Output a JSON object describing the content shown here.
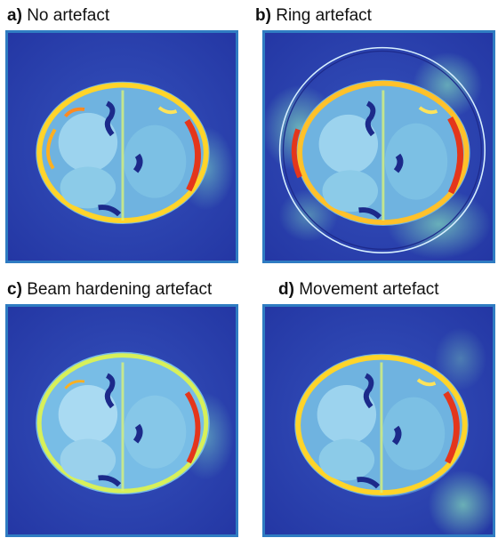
{
  "panels": [
    {
      "letter": "a)",
      "title": "No artefact",
      "variant": "none"
    },
    {
      "letter": "b)",
      "title": "Ring artefact",
      "variant": "ring"
    },
    {
      "letter": "c)",
      "title": "Beam hardening artefact",
      "variant": "beam"
    },
    {
      "letter": "d)",
      "title": "Movement artefact",
      "variant": "movement"
    }
  ],
  "colors": {
    "frame": "#2f7cc2",
    "background": "#2a3fae",
    "cool": "#7fb8ea",
    "mid": "#66d6c2",
    "warm": "#ffd42a",
    "hot": "#e4361b"
  }
}
